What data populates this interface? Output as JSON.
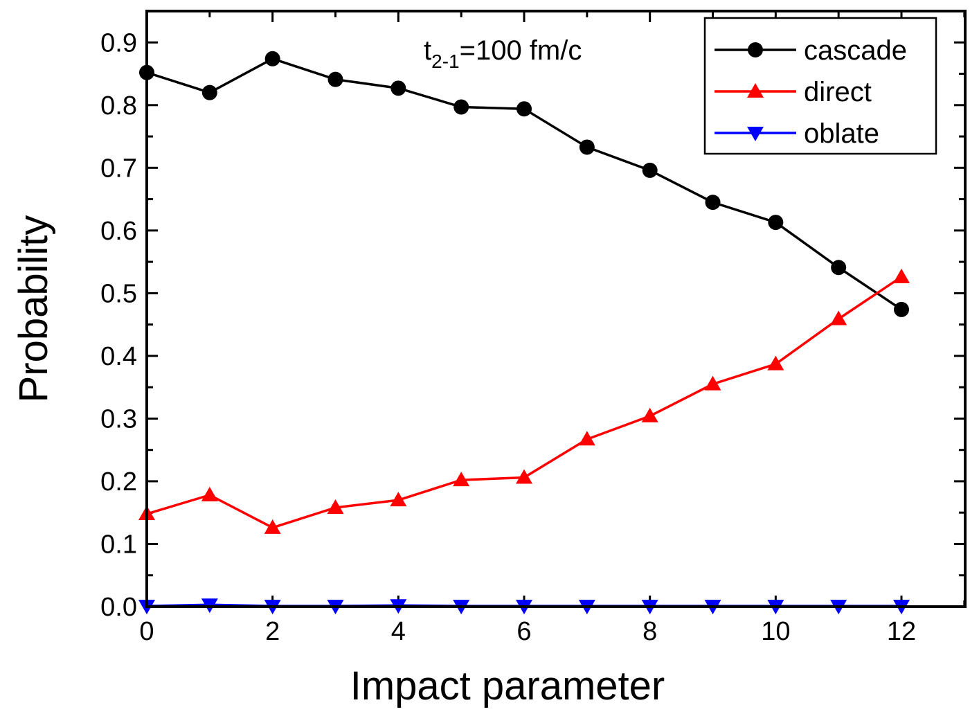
{
  "chart_data": {
    "type": "line",
    "xlabel": "Impact parameter",
    "ylabel": "Probability",
    "xlim": [
      0,
      13
    ],
    "ylim": [
      0,
      0.95
    ],
    "xticks": [
      0,
      2,
      4,
      6,
      8,
      10,
      12
    ],
    "xtick_labels": [
      "0",
      "2",
      "4",
      "6",
      "8",
      "10",
      "12"
    ],
    "yticks": [
      0.0,
      0.1,
      0.2,
      0.3,
      0.4,
      0.5,
      0.6,
      0.7,
      0.8,
      0.9
    ],
    "ytick_labels": [
      "0.0",
      "0.1",
      "0.2",
      "0.3",
      "0.4",
      "0.5",
      "0.6",
      "0.7",
      "0.8",
      "0.9"
    ],
    "annotation": {
      "base": "t",
      "sub": "2-1",
      "rest": "=100 fm/c"
    },
    "legend": {
      "position": "top-right"
    },
    "x": [
      0,
      1,
      2,
      3,
      4,
      5,
      6,
      7,
      8,
      9,
      10,
      11,
      12
    ],
    "series": [
      {
        "name": "cascade",
        "color": "#000000",
        "marker": "circle",
        "values": [
          0.852,
          0.82,
          0.874,
          0.841,
          0.827,
          0.797,
          0.794,
          0.733,
          0.696,
          0.645,
          0.613,
          0.541,
          0.474
        ]
      },
      {
        "name": "direct",
        "color": "#ff0000",
        "marker": "triangle-up",
        "values": [
          0.148,
          0.178,
          0.126,
          0.158,
          0.17,
          0.202,
          0.206,
          0.267,
          0.304,
          0.355,
          0.387,
          0.459,
          0.526
        ]
      },
      {
        "name": "oblate",
        "color": "#0000ff",
        "marker": "triangle-down",
        "values": [
          0.001,
          0.003,
          0.001,
          0.001,
          0.002,
          0.001,
          0.001,
          0.001,
          0.001,
          0.001,
          0.001,
          0.001,
          0.001
        ]
      }
    ]
  }
}
